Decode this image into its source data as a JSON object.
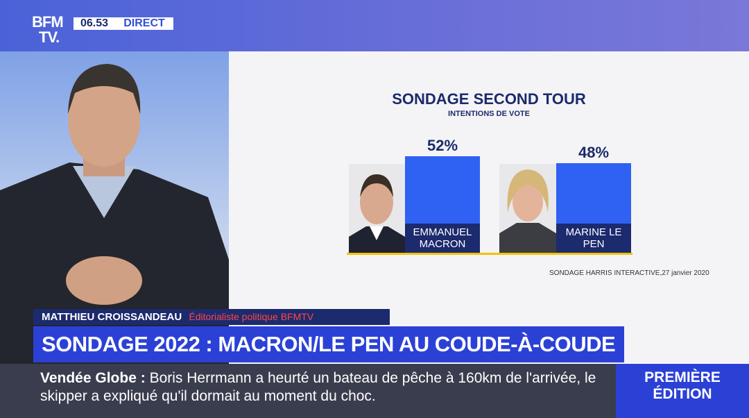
{
  "header": {
    "logo_top": "BFM",
    "logo_bottom": "TV.",
    "time": "06.53",
    "live": "DIRECT"
  },
  "chart_data": {
    "type": "bar",
    "title": "SONDAGE SECOND TOUR",
    "subtitle": "INTENTIONS DE VOTE",
    "categories": [
      "EMMANUEL MACRON",
      "MARINE LE PEN"
    ],
    "values": [
      52,
      48
    ],
    "value_labels": [
      "52%",
      "48%"
    ],
    "color": "#2f62f2",
    "source": "SONDAGE HARRIS INTERACTIVE,27 janvier 2020"
  },
  "lower_third": {
    "name": "MATTHIEU CROISSANDEAU",
    "role": "Éditorialiste politique BFMTV",
    "headline": "SONDAGE 2022 : MACRON/LE PEN AU COUDE-À-COUDE"
  },
  "ticker": {
    "label": "Vendée Globe :",
    "text": "Boris Herrmann a heurté un bateau de pêche à 160km de l'arrivée, le skipper a expliqué qu'il dormait au moment du choc.",
    "program": "PREMIÈRE ÉDITION"
  }
}
